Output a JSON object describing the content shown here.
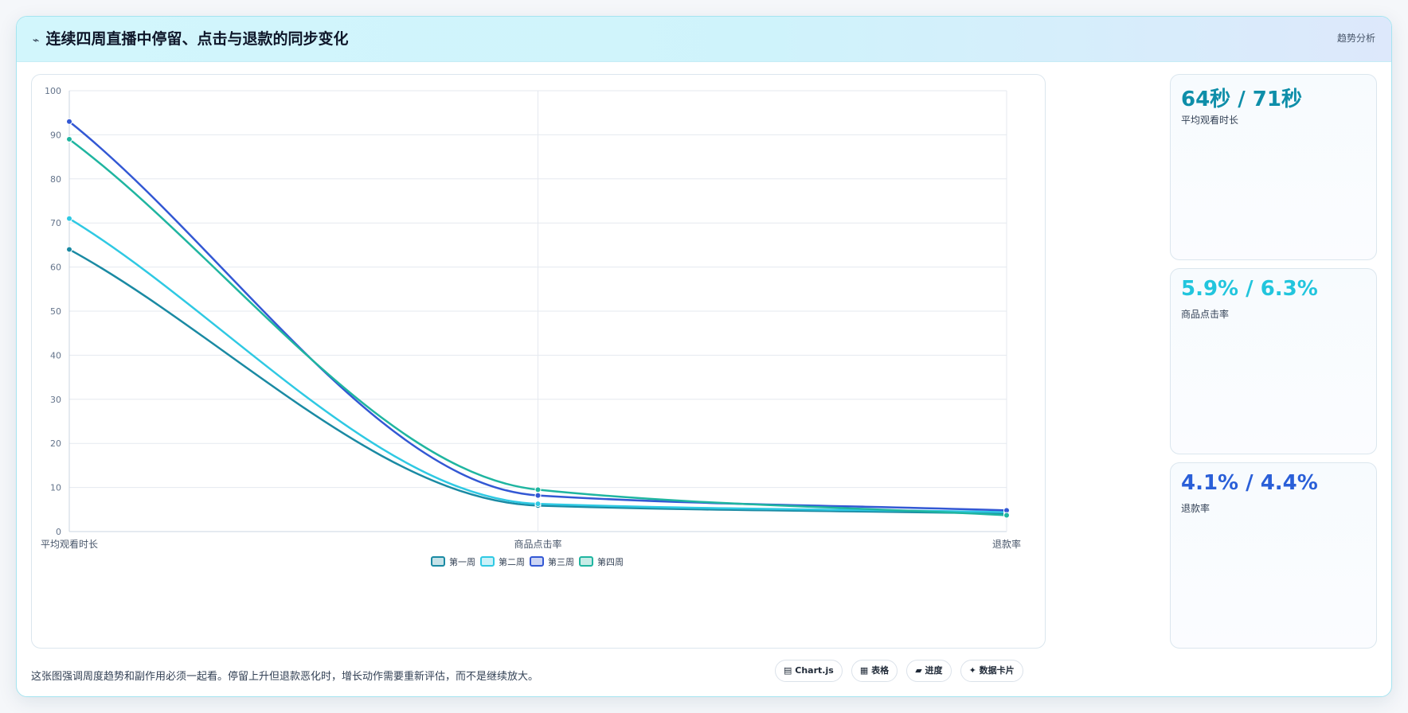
{
  "header": {
    "icon": "sparkle-icon",
    "title": "连续四周直播中停留、点击与退款的同步变化",
    "badge": "趋势分析"
  },
  "chart_data": {
    "type": "line",
    "categories": [
      "平均观看时长",
      "商品点击率",
      "退款率"
    ],
    "ylim": [
      0,
      100
    ],
    "yticks": [
      0,
      10,
      20,
      30,
      40,
      50,
      60,
      70,
      80,
      90,
      100
    ],
    "grid": true,
    "legend_position": "bottom",
    "series": [
      {
        "name": "第一周",
        "color": "#1a8aa3",
        "values": [
          64,
          5.9,
          4.1
        ]
      },
      {
        "name": "第二周",
        "color": "#2fc9e3",
        "values": [
          71,
          6.3,
          4.4
        ]
      },
      {
        "name": "第三周",
        "color": "#3358d4",
        "values": [
          93,
          8.2,
          4.8
        ]
      },
      {
        "name": "第四周",
        "color": "#1fb5a0",
        "values": [
          89,
          9.5,
          3.7
        ]
      }
    ]
  },
  "stats": [
    {
      "value": "64秒 / 71秒",
      "label": "平均观看时长",
      "color": "#0e8ea9"
    },
    {
      "value": "5.9% / 6.3%",
      "label": "商品点击率",
      "color": "#22c5dd"
    },
    {
      "value": "4.1% / 4.4%",
      "label": "退款率",
      "color": "#2a5fd8"
    }
  ],
  "footer": {
    "note": "这张图强调周度趋势和副作用必须一起看。停留上升但退款恶化时，增长动作需要重新评估，而不是继续放大。",
    "pills": [
      {
        "icon": "chart-icon",
        "glyph": "▤",
        "label": "Chart.js"
      },
      {
        "icon": "table-icon",
        "glyph": "▦",
        "label": "表格"
      },
      {
        "icon": "progress-icon",
        "glyph": "▰",
        "label": "进度"
      },
      {
        "icon": "card-icon",
        "glyph": "✦",
        "label": "数据卡片"
      }
    ]
  }
}
